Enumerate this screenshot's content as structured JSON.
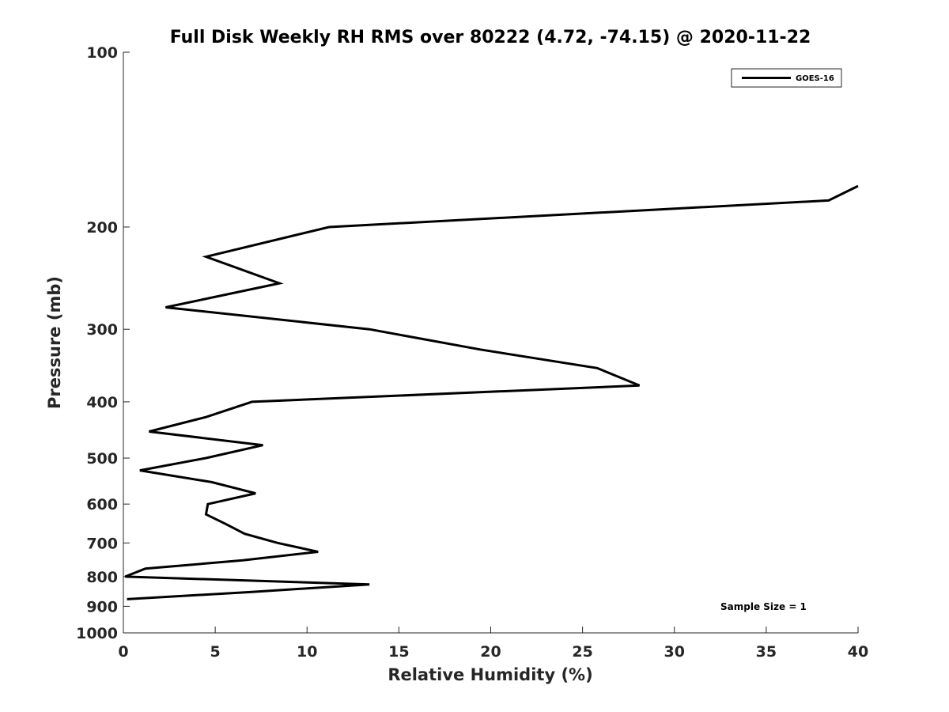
{
  "chart_data": {
    "type": "line",
    "title": "Full Disk Weekly RH RMS over 80222 (4.72, -74.15) @ 2020-11-22",
    "xlabel": "Relative Humidity (%)",
    "ylabel": "Pressure (mb)",
    "xlim": [
      0,
      40
    ],
    "ylim": [
      100,
      1000
    ],
    "y_scale": "log",
    "y_reversed": true,
    "x_ticks": [
      0,
      5,
      10,
      15,
      20,
      25,
      30,
      35,
      40
    ],
    "y_ticks": [
      100,
      200,
      300,
      400,
      500,
      600,
      700,
      800,
      900,
      1000
    ],
    "grid": false,
    "legend_position": "top-right",
    "series": [
      {
        "name": "GOES-16",
        "color": "#000000",
        "points": [
          {
            "x": 40.0,
            "y": 170
          },
          {
            "x": 38.4,
            "y": 180
          },
          {
            "x": 11.2,
            "y": 200
          },
          {
            "x": 4.5,
            "y": 225
          },
          {
            "x": 8.5,
            "y": 250
          },
          {
            "x": 2.3,
            "y": 275
          },
          {
            "x": 13.4,
            "y": 300
          },
          {
            "x": 19.4,
            "y": 325
          },
          {
            "x": 25.8,
            "y": 350
          },
          {
            "x": 28.1,
            "y": 375
          },
          {
            "x": 7.0,
            "y": 400
          },
          {
            "x": 4.5,
            "y": 425
          },
          {
            "x": 1.4,
            "y": 450
          },
          {
            "x": 7.6,
            "y": 475
          },
          {
            "x": 4.5,
            "y": 500
          },
          {
            "x": 0.9,
            "y": 525
          },
          {
            "x": 4.8,
            "y": 550
          },
          {
            "x": 7.2,
            "y": 575
          },
          {
            "x": 4.6,
            "y": 600
          },
          {
            "x": 4.5,
            "y": 625
          },
          {
            "x": 5.6,
            "y": 650
          },
          {
            "x": 6.6,
            "y": 675
          },
          {
            "x": 8.4,
            "y": 700
          },
          {
            "x": 10.6,
            "y": 725
          },
          {
            "x": 6.5,
            "y": 750
          },
          {
            "x": 1.2,
            "y": 775
          },
          {
            "x": 0.1,
            "y": 800
          },
          {
            "x": 13.4,
            "y": 825
          },
          {
            "x": 7.0,
            "y": 850
          },
          {
            "x": 0.2,
            "y": 875
          }
        ]
      }
    ],
    "annotation": "Sample Size = 1"
  }
}
